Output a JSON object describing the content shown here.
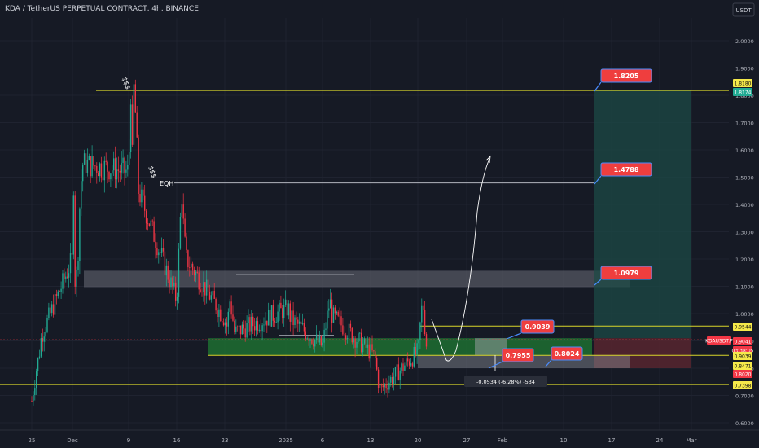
{
  "header": {
    "title": "KDA / TetherUS PERPETUAL CONTRACT, 4h, BINANCE"
  },
  "currency_badge": "USDT",
  "chart_data": {
    "type": "candlestick",
    "title": "KDA / TetherUS PERPETUAL CONTRACT, 4h, BINANCE",
    "ylim": [
      0.55,
      2.05
    ],
    "y_scale": "linear",
    "grid": true,
    "y_ticks": [
      "2.0000",
      "1.9000",
      "1.8000",
      "1.7000",
      "1.6000",
      "1.5000",
      "1.4000",
      "1.3000",
      "1.2000",
      "1.1000",
      "1.0000",
      "0.9000",
      "0.8000",
      "0.7000",
      "0.6000"
    ],
    "x_ticks": [
      "25",
      "Dec",
      "9",
      "16",
      "23",
      "2025",
      "6",
      "13",
      "20",
      "27",
      "Feb",
      "10",
      "17",
      "24",
      "Mar"
    ],
    "price_path": [
      [
        "25",
        0.68
      ],
      [
        "25",
        0.74
      ],
      [
        "25",
        0.8
      ],
      [
        "25",
        0.85
      ],
      [
        "25",
        0.92
      ],
      [
        "Dec",
        1.2
      ],
      [
        "Dec",
        1.12
      ],
      [
        "Dec",
        1.15
      ],
      [
        "Dec",
        1.4
      ],
      [
        "Dec",
        1.55
      ],
      [
        "Dec",
        1.75
      ],
      [
        "9",
        1.86
      ],
      [
        "9",
        1.84
      ],
      [
        "9",
        1.7
      ],
      [
        "9",
        1.45
      ],
      [
        "9",
        1.52
      ],
      [
        "9",
        1.3
      ],
      [
        "16",
        1.45
      ],
      [
        "16",
        1.28
      ],
      [
        "16",
        1.2
      ],
      [
        "16",
        1.05
      ],
      [
        "23",
        0.95
      ],
      [
        "23",
        1.05
      ],
      [
        "23",
        1.0
      ],
      [
        "23",
        0.93
      ],
      [
        "23",
        0.98
      ],
      [
        "2025",
        1.02
      ],
      [
        "2025",
        0.98
      ],
      [
        "6",
        1.05
      ],
      [
        "6",
        0.99
      ],
      [
        "6",
        0.88
      ],
      [
        "13",
        0.85
      ],
      [
        "13",
        0.83
      ],
      [
        "13",
        0.76
      ],
      [
        "13",
        0.72
      ],
      [
        "20",
        0.86
      ],
      [
        "20",
        0.96
      ],
      [
        "20",
        1.05
      ],
      [
        "20",
        0.94
      ],
      [
        "20",
        0.84
      ],
      [
        "20",
        0.83
      ]
    ],
    "annotations": {
      "eqh_label": "EQH",
      "sss_label_1": "$$$",
      "sss_label_2": "$$$",
      "measure_label": "-0.0534 (-6.28%) -534"
    },
    "level_lines": [
      {
        "price": 1.8174,
        "color": "#d8d52a"
      },
      {
        "price": 0.9544,
        "color": "#d8d52a"
      },
      {
        "price": 0.8471,
        "color": "#d8d52a"
      },
      {
        "price": 0.7398,
        "color": "#d8d52a"
      },
      {
        "price": 1.4788,
        "color": "#b2b5be"
      }
    ],
    "callouts": [
      "1.8205",
      "1.4788",
      "1.0979",
      "0.9039",
      "0.7955",
      "0.8024"
    ],
    "axis_badges": [
      {
        "text": "1.8180",
        "bg": "#f5e94a",
        "fg": "#111111"
      },
      {
        "text": "1.8174",
        "bg": "#22ab94",
        "fg": "#ffffff"
      },
      {
        "text": "0.9544",
        "bg": "#f5e94a",
        "fg": "#111111"
      },
      {
        "text": "KDAUSDT.P",
        "bg": "#f23645",
        "fg": "#ffffff"
      },
      {
        "text": "0.9041",
        "bg": "#f23645",
        "fg": "#ffffff"
      },
      {
        "text": "03:38:05",
        "bg": "#f23645",
        "fg": "#ffffff"
      },
      {
        "text": "0.9039",
        "bg": "#f5e94a",
        "fg": "#111111"
      },
      {
        "text": "0.8471",
        "bg": "#f5e94a",
        "fg": "#111111"
      },
      {
        "text": "0.8020",
        "bg": "#f23645",
        "fg": "#ffffff"
      },
      {
        "text": "0.7398",
        "bg": "#f5e94a",
        "fg": "#111111"
      }
    ],
    "colors": {
      "background": "#161a25",
      "grid": "#1f2330",
      "up": "#22ab94",
      "down": "#f23645",
      "level": "#d8d52a",
      "zone": "#6b6e78",
      "demand": "#1f7a33",
      "target": "#1c4a45",
      "stop": "#5b2630",
      "callout": "#ef3e3e"
    }
  }
}
